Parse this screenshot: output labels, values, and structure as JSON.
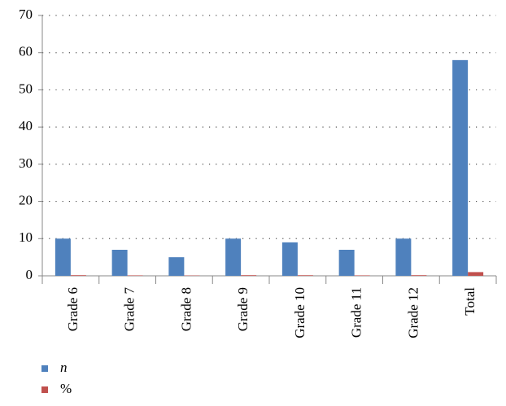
{
  "chart_data": {
    "type": "bar",
    "categories": [
      "Grade 6",
      "Grade 7",
      "Grade 8",
      "Grade 9",
      "Grade 10",
      "Grade 11",
      "Grade 12",
      "Total"
    ],
    "series": [
      {
        "name": "n",
        "color": "#4f81bd",
        "values": [
          10,
          7,
          5,
          10,
          9,
          7,
          10,
          58
        ]
      },
      {
        "name": "%",
        "color": "#c0504d",
        "values": [
          0.17,
          0.12,
          0.09,
          0.17,
          0.16,
          0.12,
          0.17,
          1
        ]
      }
    ],
    "ylim": [
      0,
      70
    ],
    "yticks": [
      0,
      10,
      20,
      30,
      40,
      50,
      60,
      70
    ],
    "grid": true,
    "legend": "bottom"
  }
}
